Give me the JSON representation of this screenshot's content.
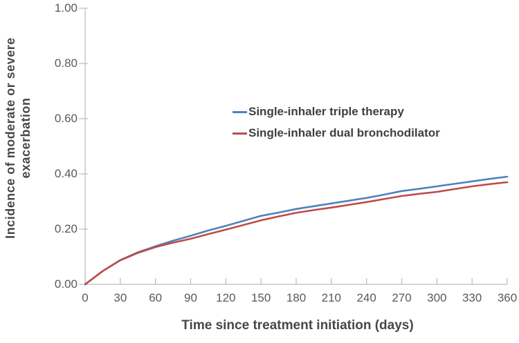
{
  "chart_data": {
    "type": "line",
    "title": "",
    "xlabel": "Time since treatment initiation (days)",
    "ylabel_line1": "Incidence of moderate or severe",
    "ylabel_line2": "exacerbation",
    "xlim": [
      0,
      360
    ],
    "ylim": [
      0.0,
      1.0
    ],
    "grid": false,
    "legend_position": "center-right-upper",
    "x_ticks": [
      "0",
      "30",
      "60",
      "90",
      "120",
      "150",
      "180",
      "210",
      "240",
      "270",
      "300",
      "330",
      "360"
    ],
    "y_ticks": [
      "0.00",
      "0.20",
      "0.40",
      "0.60",
      "0.80",
      "1.00"
    ],
    "x": [
      0,
      15,
      30,
      45,
      60,
      75,
      90,
      105,
      120,
      135,
      150,
      165,
      180,
      195,
      210,
      225,
      240,
      255,
      270,
      285,
      300,
      315,
      330,
      345,
      360
    ],
    "series": [
      {
        "name": "Single-inhaler triple therapy",
        "color": "#4f81bd",
        "values": [
          0.0,
          0.048,
          0.088,
          0.116,
          0.138,
          0.158,
          0.176,
          0.195,
          0.212,
          0.23,
          0.248,
          0.26,
          0.273,
          0.283,
          0.293,
          0.303,
          0.313,
          0.325,
          0.338,
          0.346,
          0.355,
          0.364,
          0.373,
          0.382,
          0.39
        ]
      },
      {
        "name": "Single-inhaler dual bronchodilator",
        "color": "#be4b48",
        "values": [
          0.0,
          0.048,
          0.087,
          0.114,
          0.135,
          0.151,
          0.165,
          0.182,
          0.198,
          0.215,
          0.232,
          0.246,
          0.259,
          0.269,
          0.278,
          0.288,
          0.298,
          0.309,
          0.32,
          0.328,
          0.335,
          0.345,
          0.355,
          0.363,
          0.37
        ]
      }
    ],
    "axis_color": "#bfbfbf",
    "tick_label_color": "#595959",
    "title_color": "#474747"
  }
}
